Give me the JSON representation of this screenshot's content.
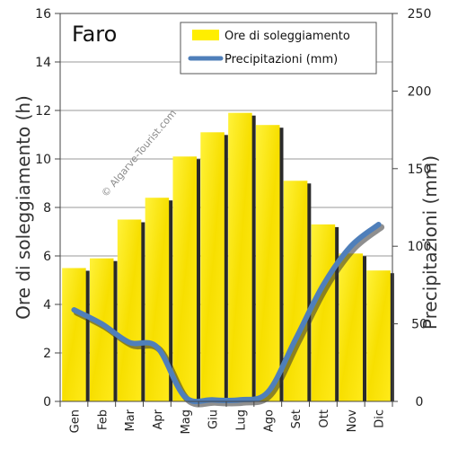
{
  "chart_data": {
    "type": "bar",
    "title": "Faro",
    "watermark": "© Algarve-Tourist.com",
    "categories": [
      "Gen",
      "Feb",
      "Mar",
      "Apr",
      "Mag",
      "Giu",
      "Lug",
      "Ago",
      "Set",
      "Ott",
      "Nov",
      "Dic"
    ],
    "series": [
      {
        "name": "Ore di soleggiamento",
        "type": "bar",
        "axis": "left",
        "color": "#ffee00",
        "values": [
          5.5,
          5.9,
          7.5,
          8.4,
          10.1,
          11.1,
          11.9,
          11.4,
          9.1,
          7.3,
          6.1,
          5.4
        ]
      },
      {
        "name": "Precipitazioni (mm)",
        "type": "line",
        "axis": "right",
        "color": "#4f7fba",
        "values": [
          59,
          50,
          38,
          35,
          3,
          1,
          1,
          6,
          40,
          75,
          100,
          114
        ]
      }
    ],
    "ylabel": "Ore di soleggiamento (h)",
    "ylabel_right": "Precipitazioni (mm)",
    "ylim": [
      0,
      16
    ],
    "yticks": [
      0,
      2,
      4,
      6,
      8,
      10,
      12,
      14,
      16
    ],
    "ylim_right": [
      0,
      250
    ],
    "yticks_right": [
      0,
      50,
      100,
      150,
      200,
      250
    ],
    "grid": true,
    "legend_position": "top-right"
  }
}
